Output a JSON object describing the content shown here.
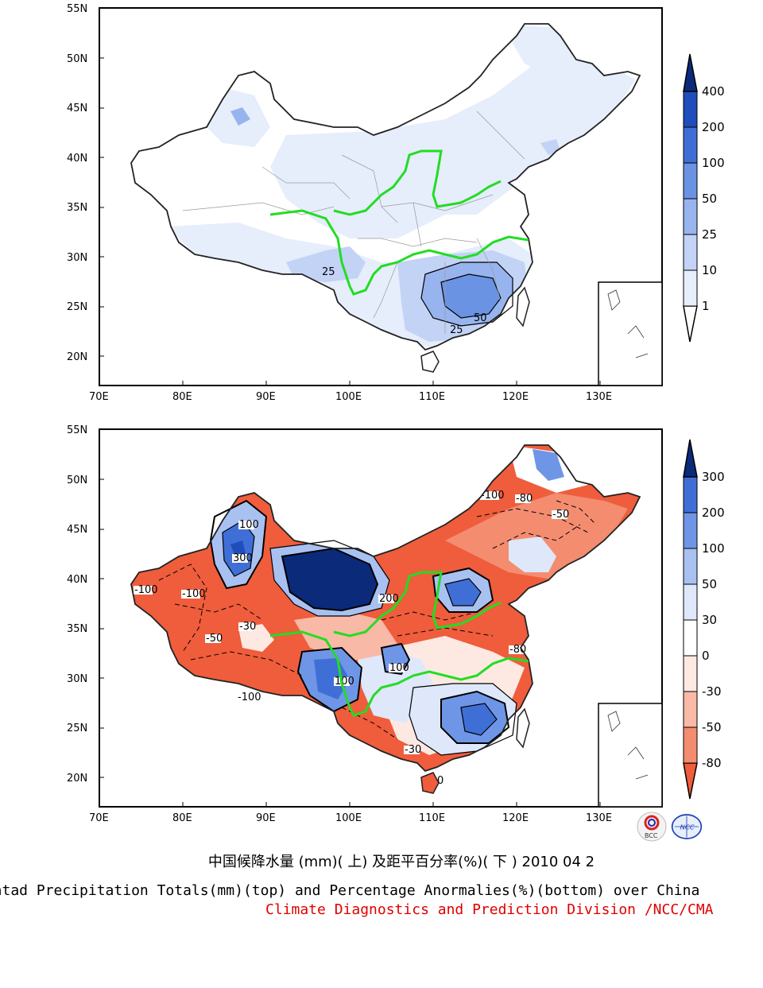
{
  "top_map": {
    "lat_labels": [
      "55N",
      "50N",
      "45N",
      "40N",
      "35N",
      "30N",
      "25N",
      "20N"
    ],
    "lon_labels": [
      "70E",
      "80E",
      "90E",
      "100E",
      "110E",
      "120E",
      "130E"
    ],
    "contour_labels": [
      "25",
      "50",
      "25"
    ],
    "colorbar_labels": [
      "400",
      "200",
      "100",
      "50",
      "25",
      "10",
      "1"
    ],
    "colors": [
      "#ffffff",
      "#e6edfb",
      "#c3d3f6",
      "#97b4ee",
      "#6b93e4",
      "#3f6fd6",
      "#1f4dbb",
      "#0b2a7a"
    ]
  },
  "bottom_map": {
    "lat_labels": [
      "55N",
      "50N",
      "45N",
      "40N",
      "35N",
      "30N",
      "25N",
      "20N"
    ],
    "lon_labels": [
      "70E",
      "80E",
      "90E",
      "100E",
      "110E",
      "120E",
      "130E"
    ],
    "contour_labels": [
      "-100",
      "-100",
      "-100",
      "-80",
      "-50",
      "-30",
      "300",
      "100",
      "200",
      "100",
      "-100",
      "-50",
      "-80",
      "100",
      "-30",
      "-80"
    ],
    "colorbar_labels": [
      "300",
      "200",
      "100",
      "50",
      "30",
      "0",
      "-30",
      "-50",
      "-80"
    ],
    "colors": [
      "#ef5d3c",
      "#f48c70",
      "#f8b9a6",
      "#fde9e2",
      "#ffffff",
      "#dfe7fa",
      "#a9c1f1",
      "#6f96e6",
      "#3f6fd6",
      "#0b2a7a"
    ]
  },
  "caption": {
    "chinese": "中国候降水量 (mm)( 上) 及距平百分率(%)( 下 ) 2010 04 2",
    "english": "Pentad Precipitation Totals(mm)(top) and Percentage Anormalies(%)(bottom) over China",
    "org": "Climate Diagnostics and Prediction Division /NCC/CMA"
  },
  "logos": {
    "left": "BCC",
    "right": "NCC"
  }
}
